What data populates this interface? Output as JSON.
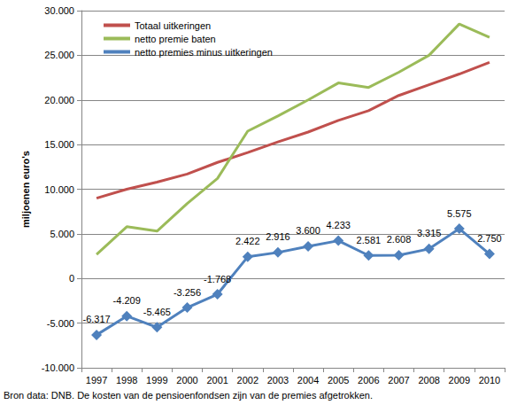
{
  "chart_data": {
    "type": "line",
    "y_label": "miljoenen euro's",
    "annotations": [
      "Bron data: DNB. De kosten van de pensioenfondsen zijn van de premies afgetrokken."
    ],
    "categories": [
      "1997",
      "1998",
      "1999",
      "2000",
      "2001",
      "2002",
      "2003",
      "2004",
      "2005",
      "2006",
      "2007",
      "2008",
      "2009",
      "2010"
    ],
    "series": [
      {
        "name": "Totaal uitkeringen",
        "color": "#c0504d",
        "marker": "none",
        "line_style": "solid",
        "values": [
          9000,
          10000,
          10800,
          11700,
          13000,
          14100,
          15300,
          16400,
          17700,
          18800,
          20500,
          21700,
          22900,
          24200
        ]
      },
      {
        "name": "netto premie baten",
        "color": "#9bbb59",
        "marker": "none",
        "line_style": "solid",
        "values": [
          2700,
          5800,
          5300,
          8400,
          11200,
          16500,
          18200,
          20000,
          21900,
          21400,
          23100,
          25000,
          28500,
          27000
        ]
      },
      {
        "name": "netto premies minus uitkeringen",
        "color": "#4f81bd",
        "marker": "diamond",
        "line_style": "solid",
        "data_labels": true,
        "values": [
          -6317,
          -4209,
          -5465,
          -3256,
          -1768,
          2422,
          2916,
          3600,
          4233,
          2581,
          2608,
          3315,
          5575,
          2750
        ],
        "value_labels": [
          "-6.317",
          "-4.209",
          "-5.465",
          "-3.256",
          "-1.768",
          "2.422",
          "2.916",
          "3.600",
          "4.233",
          "2.581",
          "2.608",
          "3.315",
          "5.575",
          "2.750"
        ]
      }
    ],
    "ylim": [
      -10000,
      30000
    ],
    "yticks": [
      {
        "value": -10000,
        "label": "-10.000"
      },
      {
        "value": -5000,
        "label": "-5.000"
      },
      0,
      {
        "value": 5000,
        "label": "5.000"
      },
      {
        "value": 10000,
        "label": "10.000"
      },
      {
        "value": 15000,
        "label": "15.000"
      },
      {
        "value": 20000,
        "label": "20.000"
      },
      {
        "value": 25000,
        "label": "25.000"
      },
      {
        "value": 30000,
        "label": "30.000"
      }
    ],
    "grid": true,
    "legend": "top-left"
  }
}
